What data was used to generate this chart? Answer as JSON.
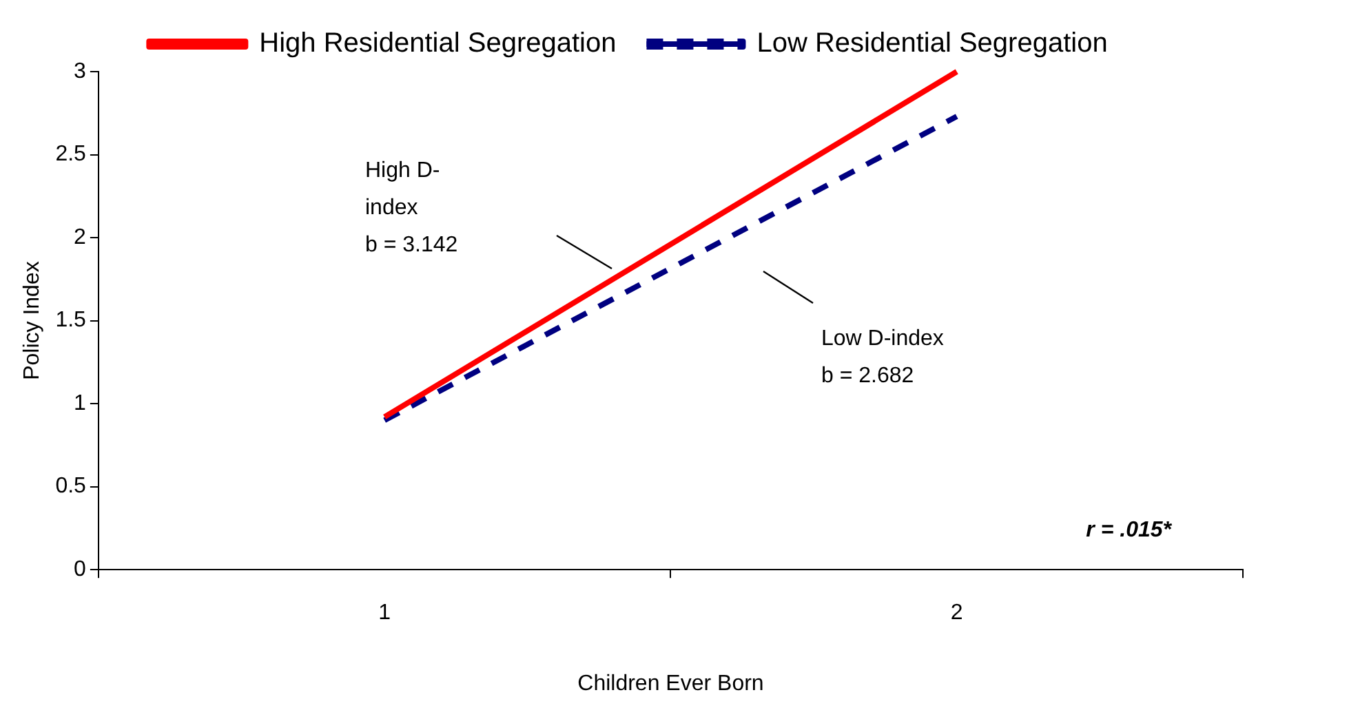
{
  "chart_data": {
    "type": "line",
    "xlabel": "Children Ever Born",
    "ylabel": "Policy Index",
    "categories": [
      "1",
      "2"
    ],
    "series": [
      {
        "name": "High Residential Segregation",
        "color": "#ff0000",
        "values": [
          0.92,
          3
        ],
        "line_style": "solid"
      },
      {
        "name": "Low Residential Segregation",
        "color": "#000080",
        "values": [
          0.9,
          2.73
        ],
        "line_style": "dashed"
      }
    ],
    "ylim": [
      0,
      3
    ],
    "yticks": [
      0,
      0.5,
      1,
      1.5,
      2,
      2.5,
      3
    ],
    "grid": false,
    "legend": "top",
    "marker": "none",
    "annotations": [
      "High D-\nindex\nb = 3.142",
      "Low D-index\nb = 2.682",
      "r = .015*"
    ]
  }
}
